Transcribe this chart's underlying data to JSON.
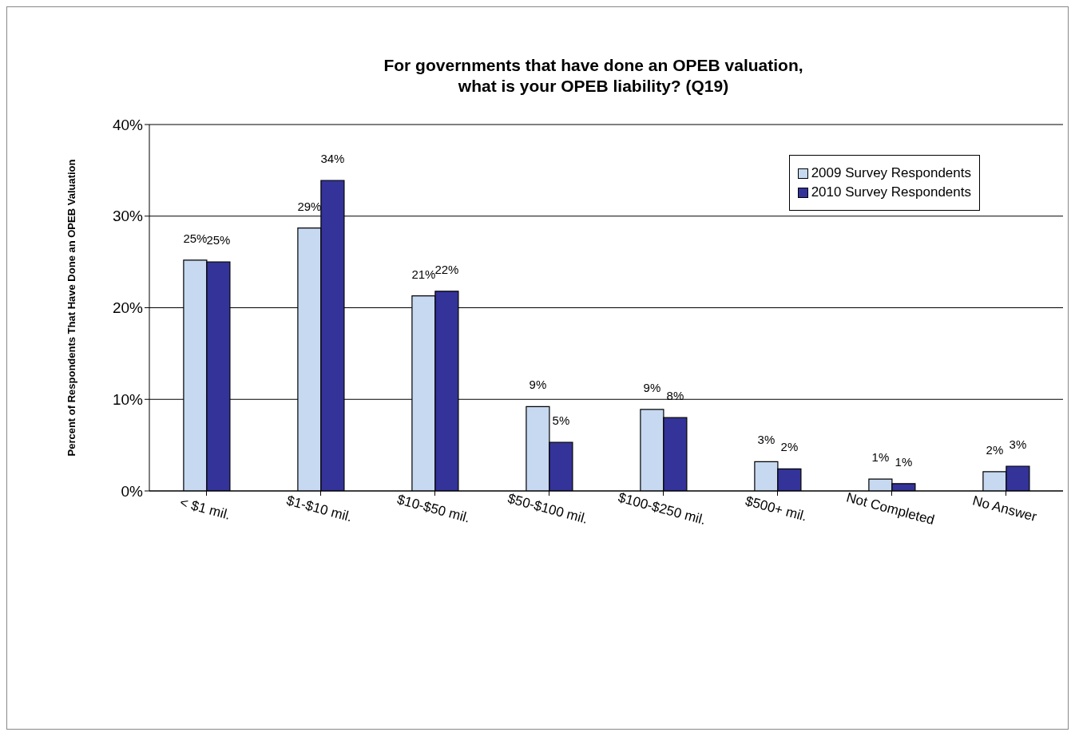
{
  "chart_data": {
    "type": "bar",
    "title": "For governments that have done an OPEB valuation,\nwhat is your OPEB liability? (Q19)",
    "ylabel": "Percent of Respondents That Have Done an OPEB Valuation",
    "categories": [
      "< $1 mil.",
      "$1-$10 mil.",
      "$10-$50 mil.",
      "$50-$100 mil.",
      "$100-$250 mil.",
      "$500+ mil.",
      "Not Completed",
      "No Answer"
    ],
    "series": [
      {
        "name": "2009 Survey Respondents",
        "color": "#c6d9f0",
        "values": [
          25.2,
          28.7,
          21.3,
          9.2,
          8.9,
          3.2,
          1.3,
          2.1
        ],
        "value_labels": [
          "25%",
          "29%",
          "21%",
          "9%",
          "9%",
          "3%",
          "1%",
          "2%"
        ]
      },
      {
        "name": "2010 Survey Respondents",
        "color": "#333399",
        "values": [
          25.0,
          33.9,
          21.8,
          5.3,
          8.0,
          2.4,
          0.8,
          2.7
        ],
        "value_labels": [
          "25%",
          "34%",
          "22%",
          "5%",
          "8%",
          "2%",
          "1%",
          "3%"
        ]
      }
    ],
    "ylim": [
      0,
      40
    ],
    "yticks": [
      {
        "value": 0,
        "label": "0%"
      },
      {
        "value": 10,
        "label": "10%"
      },
      {
        "value": 20,
        "label": "20%"
      },
      {
        "value": 30,
        "label": "30%"
      },
      {
        "value": 40,
        "label": "40%"
      }
    ],
    "grid": "y",
    "legend": "top right"
  }
}
